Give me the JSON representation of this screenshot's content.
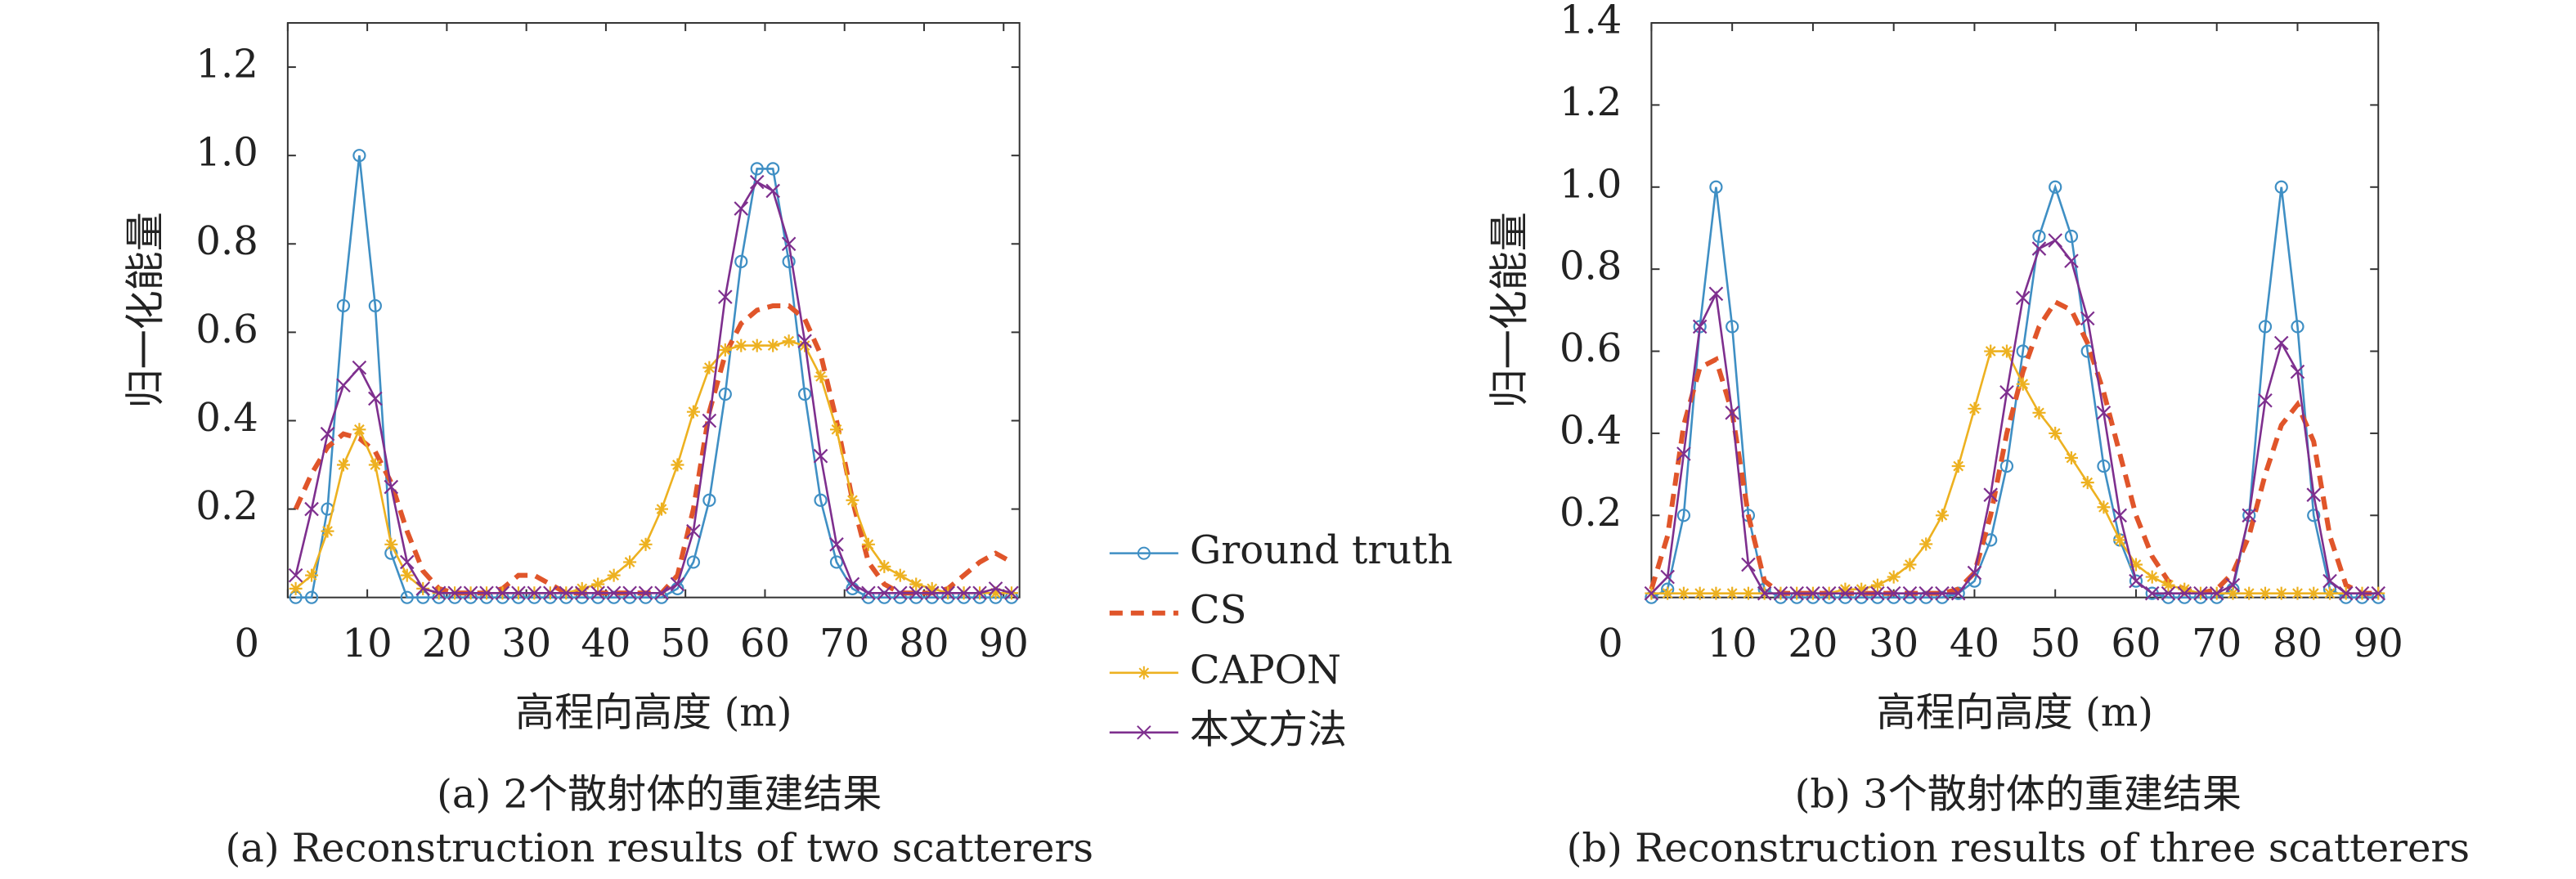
{
  "chart_data": [
    {
      "type": "line",
      "title": "(a) 2个散射体的重建结果",
      "subtitle": "(a) Reconstruction results of two scatterers",
      "x_label": "高程向高度 (m)",
      "y_label": "归一化能量",
      "xlim": [
        0,
        92
      ],
      "ylim": [
        0,
        1.3
      ],
      "xticks": [
        0,
        10,
        20,
        30,
        40,
        50,
        60,
        70,
        80,
        90
      ],
      "yticks": [
        0.2,
        0.4,
        0.6,
        0.8,
        1.0,
        1.2
      ],
      "legend": "right",
      "x": [
        1,
        3,
        5,
        7,
        9,
        11,
        13,
        15,
        17,
        19,
        21,
        23,
        25,
        27,
        29,
        31,
        33,
        35,
        37,
        39,
        41,
        43,
        45,
        47,
        49,
        51,
        53,
        55,
        57,
        59,
        61,
        63,
        65,
        67,
        69,
        71,
        73,
        75,
        77,
        79,
        81,
        83,
        85,
        87,
        89,
        91
      ],
      "series": [
        {
          "name": "Ground truth",
          "color": "#3f8fc4",
          "marker": "circle",
          "dash": false,
          "values": [
            0,
            0,
            0.2,
            0.66,
            1,
            0.66,
            0.1,
            0,
            0,
            0,
            0,
            0,
            0,
            0,
            0,
            0,
            0,
            0,
            0,
            0,
            0,
            0,
            0,
            0,
            0.02,
            0.08,
            0.22,
            0.46,
            0.76,
            0.97,
            0.97,
            0.76,
            0.46,
            0.22,
            0.08,
            0.02,
            0,
            0,
            0,
            0,
            0,
            0,
            0,
            0,
            0,
            0
          ]
        },
        {
          "name": "CS",
          "color": "#e0552a",
          "marker": "none",
          "dash": true,
          "values": [
            0.2,
            0.28,
            0.34,
            0.37,
            0.36,
            0.33,
            0.26,
            0.15,
            0.06,
            0.02,
            0.01,
            0.01,
            0.01,
            0.02,
            0.05,
            0.05,
            0.03,
            0.01,
            0.01,
            0.01,
            0.01,
            0.01,
            0.01,
            0.01,
            0.05,
            0.2,
            0.42,
            0.55,
            0.62,
            0.65,
            0.66,
            0.66,
            0.63,
            0.55,
            0.4,
            0.22,
            0.08,
            0.03,
            0.01,
            0.01,
            0.01,
            0.02,
            0.05,
            0.08,
            0.1,
            0.08
          ]
        },
        {
          "name": "CAPON",
          "color": "#edb120",
          "marker": "asterisk",
          "dash": false,
          "values": [
            0.02,
            0.05,
            0.15,
            0.3,
            0.38,
            0.3,
            0.12,
            0.05,
            0.02,
            0.01,
            0.01,
            0.01,
            0.01,
            0.01,
            0.01,
            0.01,
            0.01,
            0.01,
            0.02,
            0.03,
            0.05,
            0.08,
            0.12,
            0.2,
            0.3,
            0.42,
            0.52,
            0.56,
            0.57,
            0.57,
            0.57,
            0.58,
            0.57,
            0.5,
            0.38,
            0.22,
            0.12,
            0.07,
            0.05,
            0.03,
            0.02,
            0.01,
            0.01,
            0.01,
            0.01,
            0.01
          ]
        },
        {
          "name": "本文方法",
          "color": "#7e2f8e",
          "marker": "x",
          "dash": false,
          "values": [
            0.05,
            0.2,
            0.37,
            0.48,
            0.52,
            0.45,
            0.25,
            0.08,
            0.02,
            0.01,
            0.01,
            0.01,
            0.01,
            0.01,
            0.01,
            0.01,
            0.01,
            0.01,
            0.01,
            0.01,
            0.01,
            0.01,
            0.01,
            0.01,
            0.03,
            0.15,
            0.4,
            0.68,
            0.88,
            0.94,
            0.92,
            0.8,
            0.58,
            0.32,
            0.12,
            0.03,
            0.01,
            0.01,
            0.01,
            0.01,
            0.01,
            0.01,
            0.01,
            0.01,
            0.02,
            0.01
          ]
        }
      ]
    },
    {
      "type": "line",
      "title": "(b) 3个散射体的重建结果",
      "subtitle": "(b) Reconstruction results of three scatterers",
      "x_label": "高程向高度 (m)",
      "y_label": "归一化能量",
      "xlim": [
        0,
        90
      ],
      "ylim": [
        0,
        1.4
      ],
      "xticks": [
        0,
        10,
        20,
        30,
        40,
        50,
        60,
        70,
        80,
        90
      ],
      "yticks": [
        0.2,
        0.4,
        0.6,
        0.8,
        1.0,
        1.2,
        1.4
      ],
      "x": [
        0,
        2,
        4,
        6,
        8,
        10,
        12,
        14,
        16,
        18,
        20,
        22,
        24,
        26,
        28,
        30,
        32,
        34,
        36,
        38,
        40,
        42,
        44,
        46,
        48,
        50,
        52,
        54,
        56,
        58,
        60,
        62,
        64,
        66,
        68,
        70,
        72,
        74,
        76,
        78,
        80,
        82,
        84,
        86,
        88,
        90
      ],
      "series": [
        {
          "name": "Ground truth",
          "color": "#3f8fc4",
          "marker": "circle",
          "dash": false,
          "values": [
            0,
            0.02,
            0.2,
            0.66,
            1,
            0.66,
            0.2,
            0.02,
            0,
            0,
            0,
            0,
            0,
            0,
            0,
            0,
            0,
            0,
            0,
            0.01,
            0.04,
            0.14,
            0.32,
            0.6,
            0.88,
            1,
            0.88,
            0.6,
            0.32,
            0.14,
            0.04,
            0.01,
            0,
            0,
            0,
            0,
            0.02,
            0.2,
            0.66,
            1,
            0.66,
            0.2,
            0.02,
            0,
            0,
            0
          ]
        },
        {
          "name": "CS",
          "color": "#e0552a",
          "marker": "none",
          "dash": true,
          "values": [
            0.02,
            0.15,
            0.42,
            0.56,
            0.58,
            0.45,
            0.2,
            0.04,
            0.01,
            0.01,
            0.01,
            0.01,
            0.01,
            0.01,
            0.01,
            0.01,
            0.01,
            0.01,
            0.01,
            0.02,
            0.06,
            0.2,
            0.4,
            0.55,
            0.66,
            0.72,
            0.7,
            0.62,
            0.5,
            0.35,
            0.2,
            0.1,
            0.04,
            0.02,
            0.01,
            0.02,
            0.06,
            0.15,
            0.3,
            0.42,
            0.47,
            0.38,
            0.15,
            0.03,
            0.01,
            0.01
          ]
        },
        {
          "name": "CAPON",
          "color": "#edb120",
          "marker": "asterisk",
          "dash": false,
          "values": [
            0.01,
            0.01,
            0.01,
            0.01,
            0.01,
            0.01,
            0.01,
            0.01,
            0.01,
            0.01,
            0.01,
            0.01,
            0.02,
            0.02,
            0.03,
            0.05,
            0.08,
            0.13,
            0.2,
            0.32,
            0.46,
            0.6,
            0.6,
            0.52,
            0.45,
            0.4,
            0.34,
            0.28,
            0.22,
            0.14,
            0.08,
            0.05,
            0.03,
            0.02,
            0.01,
            0.01,
            0.01,
            0.01,
            0.01,
            0.01,
            0.01,
            0.01,
            0.01,
            0.01,
            0.01,
            0.01
          ]
        },
        {
          "name": "本文方法",
          "color": "#7e2f8e",
          "marker": "x",
          "dash": false,
          "values": [
            0.01,
            0.05,
            0.35,
            0.66,
            0.74,
            0.45,
            0.08,
            0.01,
            0.01,
            0.01,
            0.01,
            0.01,
            0.01,
            0.01,
            0.01,
            0.01,
            0.01,
            0.01,
            0.01,
            0.01,
            0.06,
            0.25,
            0.5,
            0.73,
            0.85,
            0.87,
            0.82,
            0.68,
            0.45,
            0.2,
            0.04,
            0.01,
            0.01,
            0.01,
            0.01,
            0.01,
            0.03,
            0.2,
            0.48,
            0.62,
            0.55,
            0.25,
            0.04,
            0.01,
            0.01,
            0.01
          ]
        }
      ]
    }
  ]
}
